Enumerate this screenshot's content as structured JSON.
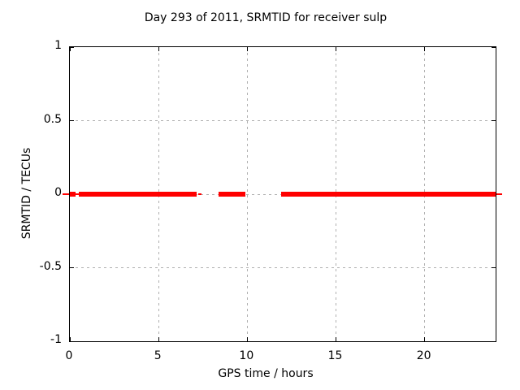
{
  "title": "Day 293 of 2011, SRMTID for receiver sulp",
  "chart_data": {
    "type": "scatter",
    "title": "Day 293 of 2011, SRMTID for receiver sulp",
    "xlabel": "GPS time / hours",
    "ylabel": "SRMTID / TECUs",
    "xlim": [
      0,
      24
    ],
    "ylim": [
      -1,
      1
    ],
    "grid": true,
    "legend": "none",
    "xticks": [
      0,
      5,
      10,
      15,
      20
    ],
    "xtick_labels": [
      "0",
      "5",
      "10",
      "15",
      "20"
    ],
    "yticks": [
      1,
      0.5,
      0,
      -0.5,
      -1
    ],
    "ytick_labels": [
      "1",
      "0.5",
      "0",
      "-0.5",
      "-1"
    ],
    "series": [
      {
        "name": "SRMTID",
        "y_value": 0,
        "dense_segments_hours": [
          [
            0,
            0.3
          ],
          [
            0.5,
            7.15
          ],
          [
            8.4,
            9.9
          ],
          [
            11.9,
            24.0
          ]
        ],
        "sparse_segments_hours": [
          [
            -0.4,
            -0.05
          ],
          [
            0.28,
            0.5
          ],
          [
            7.25,
            7.4
          ],
          [
            24.05,
            24.35
          ]
        ]
      }
    ],
    "colors": {
      "series": "#ff0000",
      "grid": "#b0b0b0",
      "axis": "#000000",
      "background": "#ffffff",
      "text": "#000000"
    }
  }
}
